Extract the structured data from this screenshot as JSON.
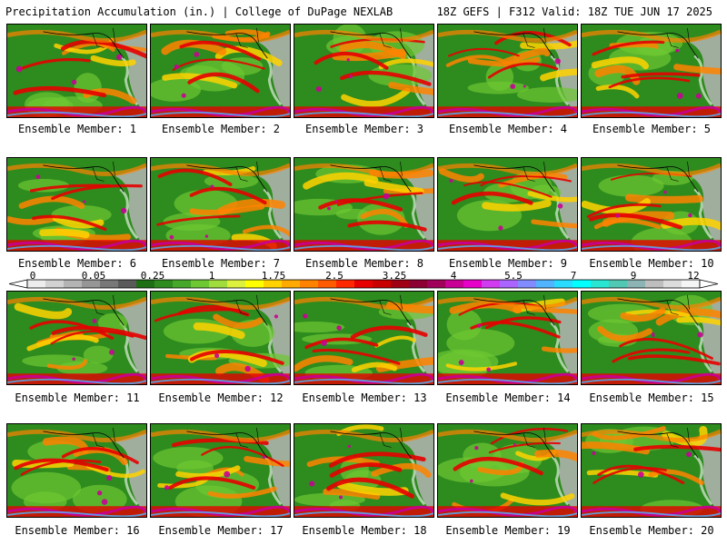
{
  "header": {
    "title_left": "Precipitation Accumulation (in.) | College of DuPage NEXLAB",
    "title_right": "18Z GEFS | F312 Valid: 18Z TUE JUN 17 2025"
  },
  "members": [
    {
      "label": "Ensemble Member: 1"
    },
    {
      "label": "Ensemble Member: 2"
    },
    {
      "label": "Ensemble Member: 3"
    },
    {
      "label": "Ensemble Member: 4"
    },
    {
      "label": "Ensemble Member: 5"
    },
    {
      "label": "Ensemble Member: 6"
    },
    {
      "label": "Ensemble Member: 7"
    },
    {
      "label": "Ensemble Member: 8"
    },
    {
      "label": "Ensemble Member: 9"
    },
    {
      "label": "Ensemble Member: 10"
    },
    {
      "label": "Ensemble Member: 11"
    },
    {
      "label": "Ensemble Member: 12"
    },
    {
      "label": "Ensemble Member: 13"
    },
    {
      "label": "Ensemble Member: 14"
    },
    {
      "label": "Ensemble Member: 15"
    },
    {
      "label": "Ensemble Member: 16"
    },
    {
      "label": "Ensemble Member: 17"
    },
    {
      "label": "Ensemble Member: 18"
    },
    {
      "label": "Ensemble Member: 19"
    },
    {
      "label": "Ensemble Member: 20"
    }
  ],
  "colorbar": {
    "tick_labels": [
      "0",
      "0.05",
      "0.25",
      "1",
      "1.75",
      "2.5",
      "3.25",
      "4",
      "5.5",
      "7",
      "9",
      "12"
    ],
    "colors": [
      "#ededed",
      "#d2d2d2",
      "#b4b4b4",
      "#969696",
      "#787878",
      "#5a5a5a",
      "#1e6e14",
      "#2e8b1e",
      "#46a82a",
      "#6ec832",
      "#a0dc3c",
      "#dcf03c",
      "#ffff00",
      "#ffd200",
      "#ffaa00",
      "#ff8200",
      "#ff5a00",
      "#ff2800",
      "#e60000",
      "#c80000",
      "#a00014",
      "#8c0032",
      "#a0005a",
      "#c80096",
      "#e600c8",
      "#d23cf0",
      "#aa64ff",
      "#828cff",
      "#50b4ff",
      "#28dcff",
      "#00ffff",
      "#28e6d2",
      "#50c8b4",
      "#8cb4b4",
      "#bebebe",
      "#dcdcdc",
      "#f5f5f5"
    ]
  },
  "map_colors": {
    "ocean_base": "#2e8b1e",
    "light_green": "#6ec832",
    "yellow": "#ffd200",
    "orange": "#ff8200",
    "red": "#e60000",
    "magenta": "#c80096",
    "gray_land": "#b4b4b4"
  }
}
